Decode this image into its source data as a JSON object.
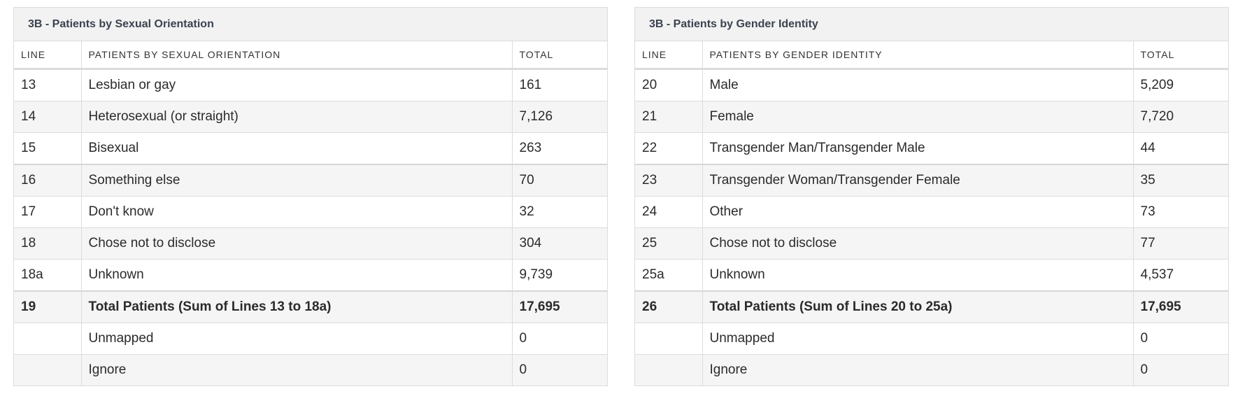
{
  "tables": [
    {
      "title": "3B - Patients by Sexual Orientation",
      "headers": [
        "LINE",
        "PATIENTS BY SEXUAL ORIENTATION",
        "TOTAL"
      ],
      "rows": [
        {
          "line": "13",
          "label": "Lesbian or gay",
          "total": "161"
        },
        {
          "line": "14",
          "label": "Heterosexual (or straight)",
          "total": "7,126"
        },
        {
          "line": "15",
          "label": "Bisexual",
          "total": "263"
        },
        {
          "line": "16",
          "label": "Something else",
          "total": "70"
        },
        {
          "line": "17",
          "label": "Don't know",
          "total": "32"
        },
        {
          "line": "18",
          "label": "Chose not to disclose",
          "total": "304"
        },
        {
          "line": "18a",
          "label": "Unknown",
          "total": "9,739"
        },
        {
          "line": "19",
          "label": "Total Patients (Sum of Lines 13 to 18a)",
          "total": "17,695"
        },
        {
          "line": "",
          "label": "Unmapped",
          "total": "0"
        },
        {
          "line": "",
          "label": "Ignore",
          "total": "0"
        }
      ]
    },
    {
      "title": "3B - Patients by Gender Identity",
      "headers": [
        "LINE",
        "PATIENTS BY GENDER IDENTITY",
        "TOTAL"
      ],
      "rows": [
        {
          "line": "20",
          "label": "Male",
          "total": "5,209"
        },
        {
          "line": "21",
          "label": "Female",
          "total": "7,720"
        },
        {
          "line": "22",
          "label": "Transgender Man/Transgender Male",
          "total": "44"
        },
        {
          "line": "23",
          "label": "Transgender Woman/Transgender Female",
          "total": "35"
        },
        {
          "line": "24",
          "label": "Other",
          "total": "73"
        },
        {
          "line": "25",
          "label": "Chose not to disclose",
          "total": "77"
        },
        {
          "line": "25a",
          "label": "Unknown",
          "total": "4,537"
        },
        {
          "line": "26",
          "label": "Total Patients (Sum of Lines 20 to 25a)",
          "total": "17,695"
        },
        {
          "line": "",
          "label": "Unmapped",
          "total": "0"
        },
        {
          "line": "",
          "label": "Ignore",
          "total": "0"
        }
      ]
    }
  ]
}
